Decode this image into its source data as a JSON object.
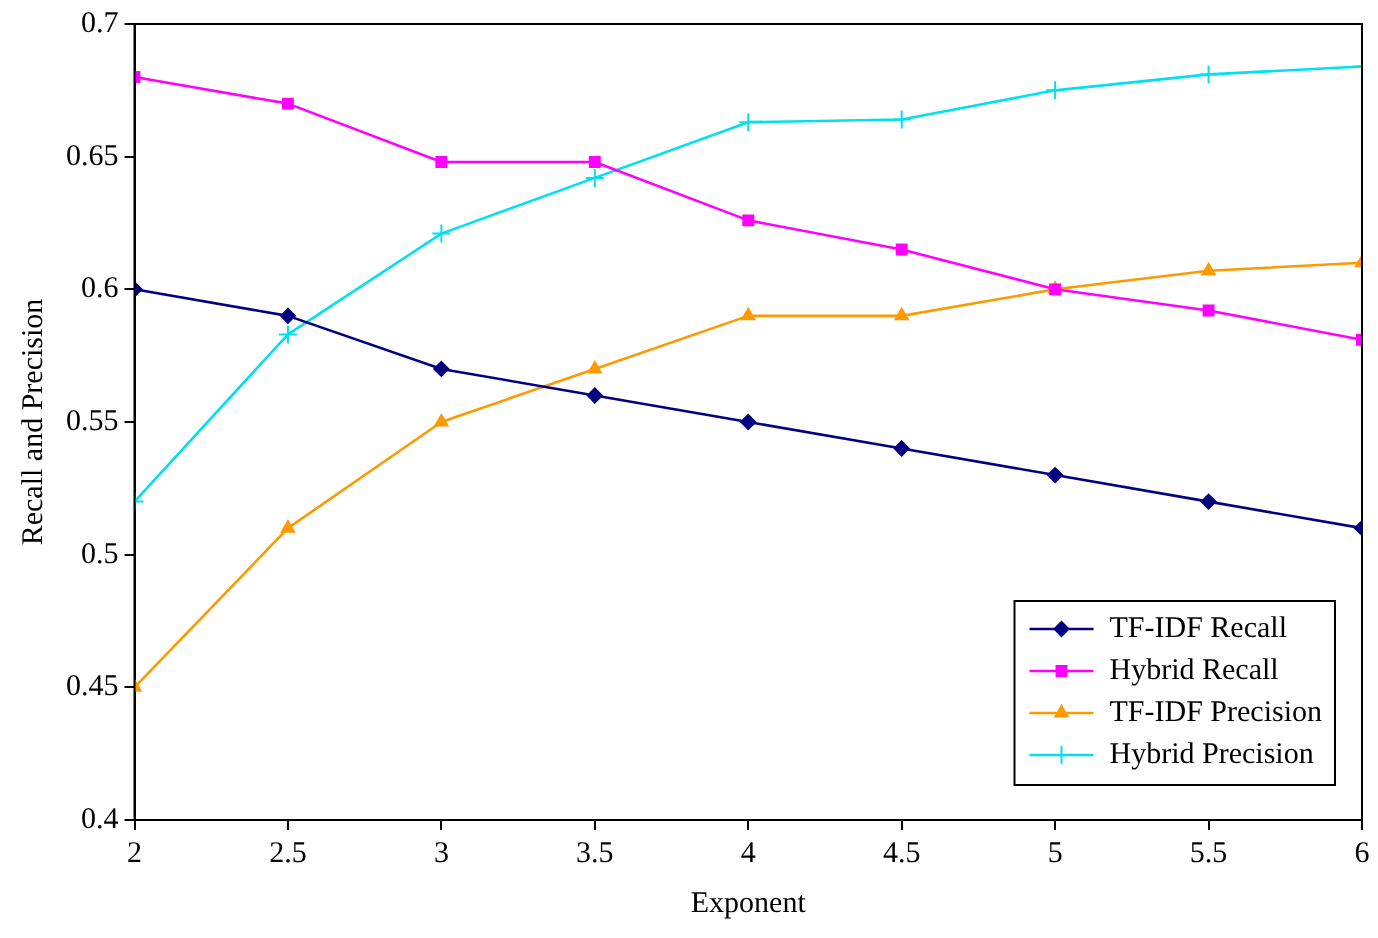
{
  "chart_data": {
    "type": "line",
    "xlabel": "Exponent",
    "ylabel": "Recall and Precision",
    "x": [
      2,
      2.5,
      3,
      3.5,
      4,
      4.5,
      5,
      5.5,
      6
    ],
    "xlim": [
      2,
      6
    ],
    "xticks": [
      2,
      2.5,
      3,
      3.5,
      4,
      4.5,
      5,
      5.5,
      6
    ],
    "ylim": [
      0.4,
      0.7
    ],
    "yticks": [
      0.4,
      0.45,
      0.5,
      0.55,
      0.6,
      0.65,
      0.7
    ],
    "grid": false,
    "legend": "bottom right",
    "line_style": "solid",
    "series": [
      {
        "name": "TF-IDF Recall",
        "color": "#000080",
        "marker": "diamond",
        "values": [
          0.6,
          0.59,
          0.57,
          0.56,
          0.55,
          0.54,
          0.53,
          0.52,
          0.51
        ]
      },
      {
        "name": "Hybrid Recall",
        "color": "#ff00ff",
        "marker": "square",
        "values": [
          0.68,
          0.67,
          0.648,
          0.648,
          0.626,
          0.615,
          0.6,
          0.592,
          0.581
        ]
      },
      {
        "name": "TF-IDF Precision",
        "color": "#ff9900",
        "marker": "triangle",
        "values": [
          0.45,
          0.51,
          0.55,
          0.57,
          0.59,
          0.59,
          0.6,
          0.607,
          0.61
        ]
      },
      {
        "name": "Hybrid Precision",
        "color": "#00e0f0",
        "marker": "cross",
        "values": [
          0.52,
          0.583,
          0.621,
          0.642,
          0.663,
          0.664,
          0.675,
          0.681,
          0.684
        ]
      }
    ]
  }
}
